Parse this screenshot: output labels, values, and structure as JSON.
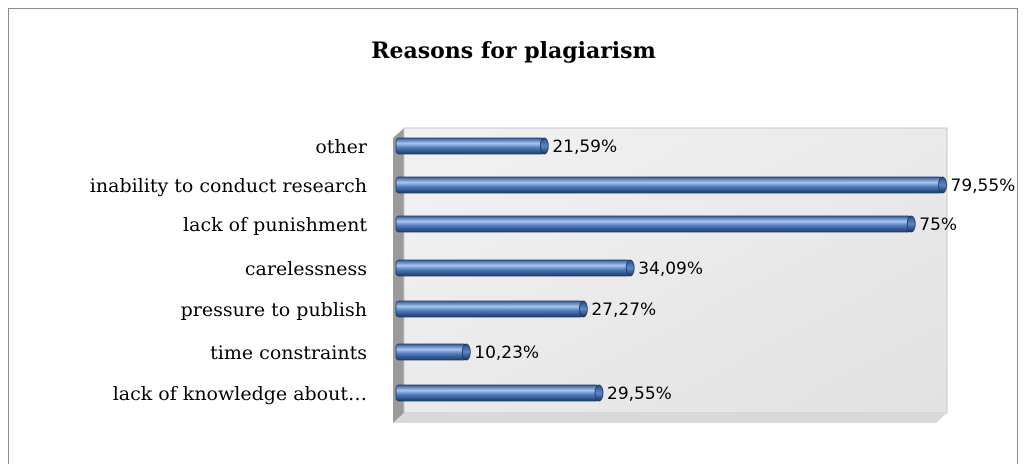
{
  "chart_data": {
    "type": "bar",
    "orientation": "horizontal",
    "title": "Reasons for plagiarism",
    "categories": [
      "other",
      "inability to conduct research",
      "lack of punishment",
      "carelessness",
      "pressure to publish",
      "time constraints",
      "lack of knowledge about…"
    ],
    "values": [
      21.59,
      79.55,
      75,
      34.09,
      27.27,
      10.23,
      29.55
    ],
    "value_labels": [
      "21,59%",
      "79,55%",
      "75%",
      "34,09%",
      "27,27%",
      "10,23%",
      "29,55%"
    ],
    "xlim": [
      0,
      100
    ],
    "grid": false,
    "legend": "none",
    "colors": {
      "bar": "#4a76b6",
      "bar_dark": "#1f3d6b",
      "bar_light": "#9cbbe6",
      "plot_back": "#ebebeb",
      "plot_side": "#9a9a9a"
    }
  }
}
